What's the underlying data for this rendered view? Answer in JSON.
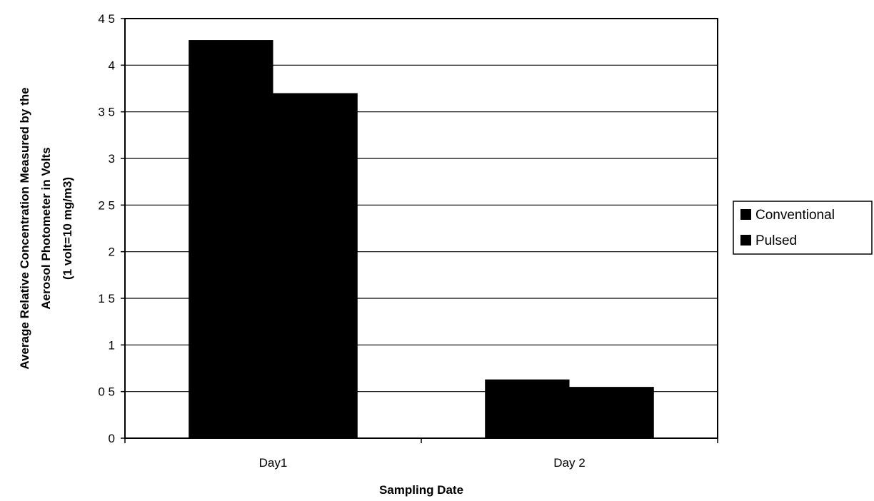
{
  "chart_data": {
    "type": "bar",
    "categories": [
      "Day1",
      "Day 2"
    ],
    "series": [
      {
        "name": "Conventional",
        "values": [
          4.27,
          0.63
        ]
      },
      {
        "name": "Pulsed",
        "values": [
          3.7,
          0.55
        ]
      }
    ],
    "xlabel": "Sampling Date",
    "ylabel": [
      "Average Relative Concentration Measured by the",
      "Aerosol Photometer in Volts",
      "(1 volt=10 mg/m3)"
    ],
    "ylim": [
      0,
      4.5
    ],
    "yticks": [
      0,
      0.5,
      1,
      1.5,
      2,
      2.5,
      3,
      3.5,
      4,
      4.5
    ],
    "ytick_labels": [
      "0",
      "0 5",
      "1",
      "1 5",
      "2",
      "2 5",
      "3",
      "3 5",
      "4",
      "4 5"
    ],
    "grid": true,
    "legend": "right",
    "colors": [
      "#000000",
      "#000000"
    ]
  }
}
